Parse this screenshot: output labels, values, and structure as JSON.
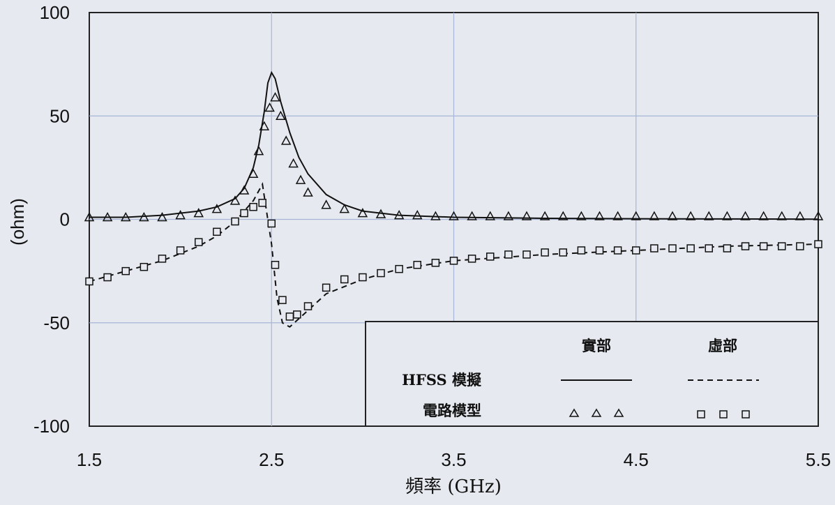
{
  "chart_data": {
    "type": "line",
    "xlabel": "頻率 (GHz)",
    "ylabel": "(ohm)",
    "xlim": [
      1.5,
      5.5
    ],
    "ylim": [
      -100,
      100
    ],
    "xticks": [
      "1.5",
      "2.5",
      "3.5",
      "4.5",
      "5.5"
    ],
    "yticks": [
      "100",
      "50",
      "0",
      "-50",
      "-100"
    ],
    "grid": true,
    "legend": {
      "position": "bottom-right",
      "col_real": "實部",
      "col_imag": "虛部",
      "row_hfss": "HFSS 模擬",
      "row_circuit": "電路模型"
    },
    "series": [
      {
        "style": "solid",
        "x": [
          1.5,
          1.7,
          1.9,
          2.1,
          2.2,
          2.3,
          2.35,
          2.4,
          2.43,
          2.46,
          2.48,
          2.5,
          2.52,
          2.55,
          2.6,
          2.65,
          2.7,
          2.8,
          2.9,
          3.0,
          3.2,
          3.5,
          4.0,
          4.5,
          5.0,
          5.5
        ],
        "values": [
          1,
          1,
          2,
          4,
          6,
          10,
          15,
          25,
          36,
          52,
          66,
          71,
          68,
          57,
          42,
          30,
          22,
          12,
          7,
          4,
          2,
          1,
          0.5,
          0.3,
          0.2,
          0.1
        ]
      },
      {
        "style": "dashed",
        "x": [
          1.5,
          1.7,
          1.9,
          2.1,
          2.2,
          2.3,
          2.4,
          2.45,
          2.5,
          2.53,
          2.56,
          2.6,
          2.7,
          2.8,
          3.0,
          3.2,
          3.5,
          4.0,
          4.5,
          5.0,
          5.5
        ],
        "values": [
          -30,
          -25,
          -20,
          -13,
          -8,
          -1,
          9,
          17,
          -12,
          -38,
          -50,
          -52,
          -44,
          -36,
          -29,
          -24,
          -20,
          -17,
          -15,
          -13,
          -12
        ]
      },
      {
        "style": "triangles",
        "x": [
          1.5,
          1.6,
          1.7,
          1.8,
          1.9,
          2.0,
          2.1,
          2.2,
          2.3,
          2.35,
          2.4,
          2.43,
          2.46,
          2.49,
          2.52,
          2.55,
          2.58,
          2.62,
          2.66,
          2.7,
          2.8,
          2.9,
          3.0,
          3.1,
          3.2,
          3.3,
          3.4,
          3.5,
          3.6,
          3.7,
          3.8,
          3.9,
          4.0,
          4.1,
          4.2,
          4.3,
          4.4,
          4.5,
          4.6,
          4.7,
          4.8,
          4.9,
          5.0,
          5.1,
          5.2,
          5.3,
          5.4,
          5.5
        ],
        "values": [
          1,
          1,
          1,
          1,
          1,
          2,
          3,
          5,
          9,
          14,
          22,
          33,
          45,
          54,
          59,
          50,
          38,
          27,
          19,
          13,
          7,
          5,
          3,
          2.5,
          2,
          2,
          1.5,
          1.5,
          1.5,
          1.5,
          1.5,
          1.5,
          1.5,
          1.5,
          1.5,
          1.5,
          1.5,
          1.5,
          1.5,
          1.5,
          1.5,
          1.5,
          1.5,
          1.5,
          1.5,
          1.5,
          1.5,
          1.5
        ]
      },
      {
        "style": "squares",
        "x": [
          1.5,
          1.6,
          1.7,
          1.8,
          1.9,
          2.0,
          2.1,
          2.2,
          2.3,
          2.35,
          2.4,
          2.45,
          2.5,
          2.52,
          2.56,
          2.6,
          2.64,
          2.7,
          2.8,
          2.9,
          3.0,
          3.1,
          3.2,
          3.3,
          3.4,
          3.5,
          3.6,
          3.7,
          3.8,
          3.9,
          4.0,
          4.1,
          4.2,
          4.3,
          4.4,
          4.5,
          4.6,
          4.7,
          4.8,
          4.9,
          5.0,
          5.1,
          5.2,
          5.3,
          5.4,
          5.5
        ],
        "values": [
          -30,
          -28,
          -25,
          -23,
          -19,
          -15,
          -11,
          -6,
          -1,
          3,
          6,
          8,
          -2,
          -22,
          -39,
          -47,
          -46,
          -42,
          -33,
          -29,
          -28,
          -26,
          -24,
          -22,
          -21,
          -20,
          -19,
          -18,
          -17,
          -17,
          -16,
          -16,
          -15,
          -15,
          -15,
          -15,
          -14,
          -14,
          -14,
          -14,
          -14,
          -13,
          -13,
          -13,
          -13,
          -12
        ]
      }
    ]
  }
}
